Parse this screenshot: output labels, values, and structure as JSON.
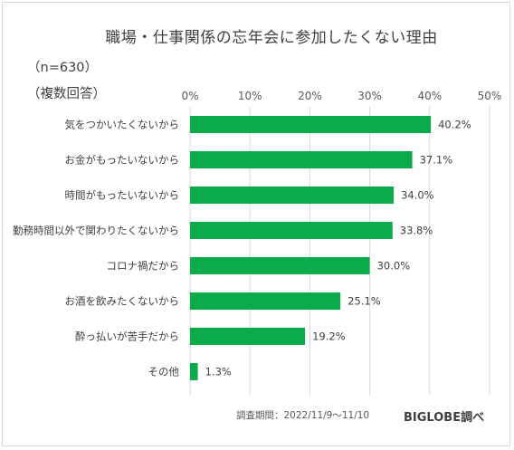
{
  "header": {
    "title": "職場・仕事関係の忘年会に参加したくない理由",
    "sample": "（n=630）",
    "multi": "（複数回答）"
  },
  "footer": {
    "source": "調査期間：2022/11/9～11/10",
    "brand": "BIGLOBE調べ"
  },
  "chart_data": {
    "type": "bar",
    "orientation": "horizontal",
    "categories": [
      "気をつかいたくないから",
      "お金がもったいないから",
      "時間がもったいないから",
      "勤務時間以外で関わりたくないから",
      "コロナ禍だから",
      "お酒を飲みたくないから",
      "酔っ払いが苦手だから",
      "その他"
    ],
    "values": [
      40.2,
      37.1,
      34.0,
      33.8,
      30.0,
      25.1,
      19.2,
      1.3
    ],
    "value_labels": [
      "40.2%",
      "37.1%",
      "34.0%",
      "33.8%",
      "30.0%",
      "25.1%",
      "19.2%",
      "1.3%"
    ],
    "xlim": [
      0,
      50
    ],
    "ticks": [
      0,
      10,
      20,
      30,
      40,
      50
    ],
    "tick_labels": [
      "0%",
      "10%",
      "20%",
      "30%",
      "40%",
      "50%"
    ],
    "grid": true,
    "axis_position": "top",
    "bar_color": "#0aac4a"
  }
}
